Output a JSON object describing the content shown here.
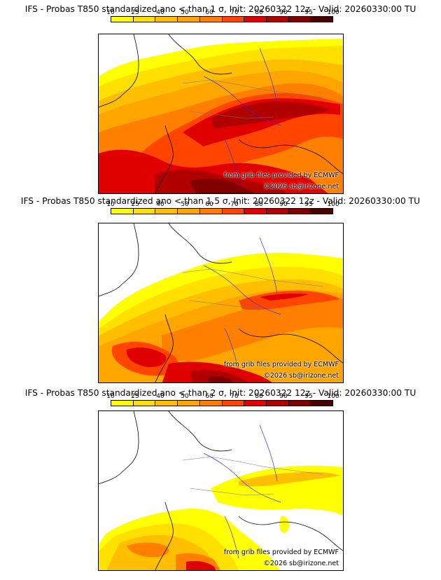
{
  "legend": {
    "ticks": [
      "10",
      "25",
      "40",
      "50",
      "60",
      "70",
      "80",
      "90",
      "95",
      "100"
    ],
    "colors": [
      "#ffff00",
      "#ffe000",
      "#ffbf00",
      "#ffa500",
      "#ff8000",
      "#ff4500",
      "#e00000",
      "#b00000",
      "#800000",
      "#4a0000"
    ]
  },
  "panels": [
    {
      "title": "IFS - Probas T850  standardized ano < than 1 σ, Init: 20260322 12z - Valid: 20260330:00 TU",
      "credit_source": "from grib files provided by ECMWF",
      "credit_copyright": "©2026 sb@irizone.net"
    },
    {
      "title": "IFS - Probas T850  standardized ano < than 1.5 σ, Init: 20260322 12z - Valid: 20260330:00 TU",
      "credit_source": "from grib files provided by ECMWF",
      "credit_copyright": "©2026 sb@irizone.net"
    },
    {
      "title": "IFS - Probas T850  standardized ano < than 2 σ, Init: 20260322 12z - Valid: 20260330:00 TU",
      "credit_source": "from grib files provided by ECMWF",
      "credit_copyright": "©2026 sb@irizone.net"
    }
  ]
}
